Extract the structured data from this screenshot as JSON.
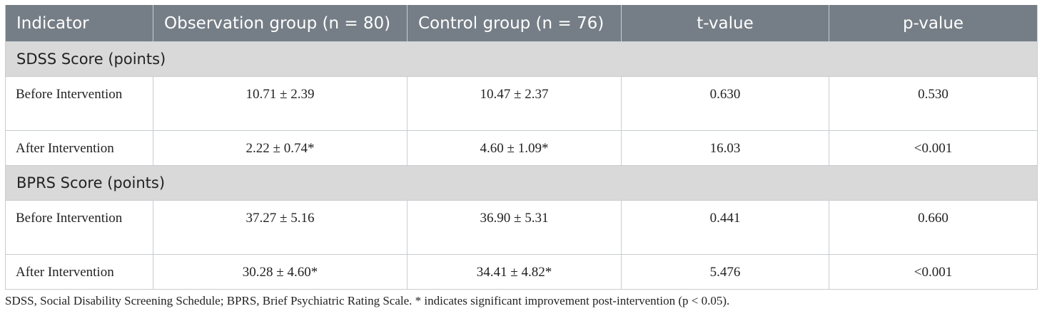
{
  "table": {
    "headers": [
      "Indicator",
      "Observation group (n = 80)",
      "Control group (n = 76)",
      "t-value",
      "p-value"
    ],
    "sections": [
      {
        "title": "SDSS Score (points)",
        "rows": [
          {
            "label": "Before Intervention",
            "obs": "10.71 ± 2.39",
            "ctrl": "10.47 ± 2.37",
            "t": "0.630",
            "p": "0.530"
          },
          {
            "label": "After Intervention",
            "obs": "2.22 ± 0.74*",
            "ctrl": "4.60 ± 1.09*",
            "t": "16.03",
            "p": "<0.001"
          }
        ]
      },
      {
        "title": "BPRS Score (points)",
        "rows": [
          {
            "label": "Before Intervention",
            "obs": "37.27 ± 5.16",
            "ctrl": "36.90 ± 5.31",
            "t": "0.441",
            "p": "0.660"
          },
          {
            "label": "After Intervention",
            "obs": "30.28 ± 4.60*",
            "ctrl": "34.41 ± 4.82*",
            "t": "5.476",
            "p": "<0.001"
          }
        ]
      }
    ]
  },
  "footnote": "SDSS, Social Disability Screening Schedule; BPRS, Brief Psychiatric Rating Scale. * indicates significant improvement post-intervention (p < 0.05)."
}
